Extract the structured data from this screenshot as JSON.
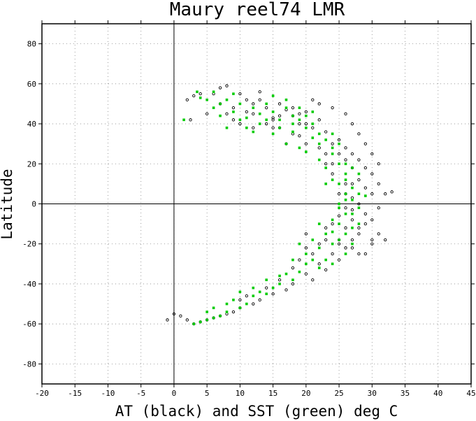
{
  "chart_data": {
    "type": "scatter",
    "title": "Maury reel74 LMR",
    "xlabel": "AT (black) and SST (green) deg C",
    "ylabel": "Latitude",
    "xlim": [
      -20,
      45
    ],
    "ylim": [
      -90,
      90
    ],
    "x_ticks": [
      -20,
      -15,
      -10,
      -5,
      0,
      5,
      10,
      15,
      20,
      25,
      30,
      35,
      40,
      45
    ],
    "y_ticks": [
      -80,
      -60,
      -40,
      -20,
      0,
      20,
      40,
      60,
      80
    ],
    "grid": true,
    "zero_lines": true,
    "series": [
      {
        "name": "AT (black)",
        "color": "#000000",
        "marker": "open-circle",
        "points": [
          [
            2,
            52
          ],
          [
            3,
            54
          ],
          [
            4,
            55
          ],
          [
            2.5,
            42
          ],
          [
            5,
            45
          ],
          [
            6,
            55
          ],
          [
            7,
            58
          ],
          [
            8,
            59
          ],
          [
            7,
            50
          ],
          [
            8,
            45
          ],
          [
            9,
            42
          ],
          [
            10,
            40
          ],
          [
            9,
            48
          ],
          [
            11,
            46
          ],
          [
            12,
            50
          ],
          [
            10,
            55
          ],
          [
            13,
            52
          ],
          [
            12,
            45
          ],
          [
            14,
            48
          ],
          [
            15,
            43
          ],
          [
            16,
            50
          ],
          [
            17,
            47
          ],
          [
            15,
            38
          ],
          [
            18,
            44
          ],
          [
            19,
            40
          ],
          [
            20,
            46
          ],
          [
            21,
            38
          ],
          [
            22,
            42
          ],
          [
            19,
            34
          ],
          [
            23,
            36
          ],
          [
            24,
            30
          ],
          [
            22,
            28
          ],
          [
            25,
            25
          ],
          [
            26,
            22
          ],
          [
            23,
            20
          ],
          [
            24,
            15
          ],
          [
            27,
            18
          ],
          [
            28,
            12
          ],
          [
            26,
            10
          ],
          [
            25,
            5
          ],
          [
            27,
            3
          ],
          [
            29,
            8
          ],
          [
            30,
            15
          ],
          [
            31,
            10
          ],
          [
            28,
            0
          ],
          [
            27,
            -3
          ],
          [
            29,
            -5
          ],
          [
            30,
            -8
          ],
          [
            26,
            -2
          ],
          [
            28,
            -12
          ],
          [
            30,
            -18
          ],
          [
            31,
            -15
          ],
          [
            27,
            -18
          ],
          [
            26,
            -22
          ],
          [
            29,
            -25
          ],
          [
            24,
            -25
          ],
          [
            25,
            -28
          ],
          [
            22,
            -30
          ],
          [
            23,
            -33
          ],
          [
            20,
            -35
          ],
          [
            21,
            -38
          ],
          [
            18,
            -40
          ],
          [
            17,
            -43
          ],
          [
            15,
            -45
          ],
          [
            14,
            -42
          ],
          [
            13,
            -48
          ],
          [
            12,
            -50
          ],
          [
            10,
            -52
          ],
          [
            9,
            -54
          ],
          [
            8,
            -55
          ],
          [
            7,
            -56
          ],
          [
            6,
            -57
          ],
          [
            5,
            -58
          ],
          [
            4,
            -59
          ],
          [
            3,
            -60
          ],
          [
            2,
            -58
          ],
          [
            1,
            -56
          ],
          [
            0,
            -55
          ],
          [
            -1,
            -58
          ],
          [
            24,
            -10
          ],
          [
            25,
            -18
          ],
          [
            22,
            -20
          ],
          [
            20,
            -15
          ],
          [
            23,
            -12
          ],
          [
            21,
            -25
          ],
          [
            19,
            -28
          ],
          [
            32,
            5
          ],
          [
            31,
            20
          ],
          [
            30,
            25
          ],
          [
            29,
            30
          ],
          [
            28,
            35
          ],
          [
            27,
            40
          ],
          [
            26,
            45
          ],
          [
            24,
            48
          ],
          [
            22,
            50
          ],
          [
            21,
            52
          ],
          [
            20,
            40
          ],
          [
            18,
            35
          ],
          [
            17,
            30
          ],
          [
            16,
            38
          ],
          [
            15,
            42
          ],
          [
            11,
            52
          ],
          [
            13,
            56
          ],
          [
            14,
            40
          ],
          [
            12,
            38
          ],
          [
            26,
            28
          ],
          [
            27,
            25
          ],
          [
            28,
            22
          ],
          [
            29,
            18
          ],
          [
            30,
            5
          ],
          [
            31,
            -2
          ],
          [
            29,
            -10
          ],
          [
            27,
            -8
          ],
          [
            26,
            -12
          ],
          [
            28,
            -15
          ],
          [
            25,
            -6
          ],
          [
            26,
            5
          ],
          [
            27,
            10
          ],
          [
            24,
            20
          ],
          [
            25,
            32
          ],
          [
            23,
            25
          ],
          [
            20,
            30
          ],
          [
            19,
            45
          ],
          [
            18,
            48
          ],
          [
            16,
            44
          ],
          [
            10,
            -48
          ],
          [
            11,
            -46
          ],
          [
            16,
            -38
          ],
          [
            18,
            -32
          ],
          [
            20,
            -22
          ],
          [
            23,
            -18
          ],
          [
            25,
            -20
          ],
          [
            27,
            -22
          ],
          [
            28,
            -25
          ],
          [
            30,
            -20
          ],
          [
            32,
            -18
          ],
          [
            33,
            6
          ]
        ]
      },
      {
        "name": "SST (green)",
        "color": "#00cc00",
        "marker": "filled-square",
        "points": [
          [
            1.5,
            42
          ],
          [
            3.5,
            56
          ],
          [
            5,
            52
          ],
          [
            6,
            48
          ],
          [
            7,
            44
          ],
          [
            8,
            52
          ],
          [
            9,
            46
          ],
          [
            10,
            50
          ],
          [
            11,
            43
          ],
          [
            12,
            48
          ],
          [
            13,
            45
          ],
          [
            14,
            50
          ],
          [
            15,
            46
          ],
          [
            16,
            42
          ],
          [
            17,
            48
          ],
          [
            18,
            44
          ],
          [
            19,
            42
          ],
          [
            20,
            38
          ],
          [
            21,
            40
          ],
          [
            22,
            35
          ],
          [
            23,
            32
          ],
          [
            24,
            28
          ],
          [
            22,
            22
          ],
          [
            23,
            18
          ],
          [
            24,
            25
          ],
          [
            25,
            20
          ],
          [
            26,
            15
          ],
          [
            25,
            10
          ],
          [
            26,
            5
          ],
          [
            27,
            8
          ],
          [
            28,
            15
          ],
          [
            27,
            2
          ],
          [
            26,
            -5
          ],
          [
            25,
            -10
          ],
          [
            26,
            -15
          ],
          [
            27,
            -5
          ],
          [
            28,
            -10
          ],
          [
            25,
            -2
          ],
          [
            24,
            -8
          ],
          [
            23,
            -15
          ],
          [
            22,
            -22
          ],
          [
            21,
            -28
          ],
          [
            20,
            -30
          ],
          [
            19,
            -34
          ],
          [
            18,
            -38
          ],
          [
            16,
            -40
          ],
          [
            15,
            -42
          ],
          [
            14,
            -45
          ],
          [
            12,
            -46
          ],
          [
            11,
            -50
          ],
          [
            10,
            -52
          ],
          [
            8,
            -54
          ],
          [
            7,
            -56
          ],
          [
            6,
            -57
          ],
          [
            5,
            -58
          ],
          [
            4,
            -59
          ],
          [
            3,
            -60
          ],
          [
            25,
            -18
          ],
          [
            26,
            -25
          ],
          [
            24,
            -20
          ],
          [
            23,
            -28
          ],
          [
            22,
            -32
          ],
          [
            20,
            -25
          ],
          [
            18,
            -28
          ],
          [
            17,
            -35
          ],
          [
            9,
            -48
          ],
          [
            13,
            -44
          ],
          [
            16,
            -36
          ],
          [
            17,
            30
          ],
          [
            18,
            36
          ],
          [
            19,
            28
          ],
          [
            20,
            26
          ],
          [
            21,
            33
          ],
          [
            16,
            38
          ],
          [
            15,
            35
          ],
          [
            14,
            42
          ],
          [
            13,
            40
          ],
          [
            12,
            36
          ],
          [
            18,
            40
          ],
          [
            24,
            12
          ],
          [
            25,
            0
          ],
          [
            27,
            -12
          ],
          [
            28,
            5
          ],
          [
            24,
            35
          ],
          [
            26,
            20
          ],
          [
            27,
            18
          ],
          [
            23,
            10
          ],
          [
            22,
            30
          ],
          [
            20,
            44
          ],
          [
            19,
            48
          ],
          [
            10,
            42
          ],
          [
            8,
            38
          ],
          [
            11,
            38
          ],
          [
            9,
            55
          ],
          [
            7,
            50
          ],
          [
            6,
            56
          ],
          [
            4,
            53
          ],
          [
            21,
            46
          ],
          [
            17,
            52
          ],
          [
            15,
            54
          ],
          [
            25,
            30
          ],
          [
            26,
            12
          ],
          [
            28,
            -2
          ],
          [
            24,
            -14
          ],
          [
            26,
            2
          ],
          [
            27,
            -20
          ],
          [
            29,
            4
          ],
          [
            22,
            -10
          ],
          [
            21,
            -18
          ],
          [
            19,
            -20
          ],
          [
            12,
            -42
          ],
          [
            14,
            -38
          ],
          [
            6,
            -52
          ],
          [
            5,
            -54
          ],
          [
            8,
            -50
          ],
          [
            10,
            -44
          ],
          [
            24,
            -30
          ]
        ]
      }
    ]
  }
}
